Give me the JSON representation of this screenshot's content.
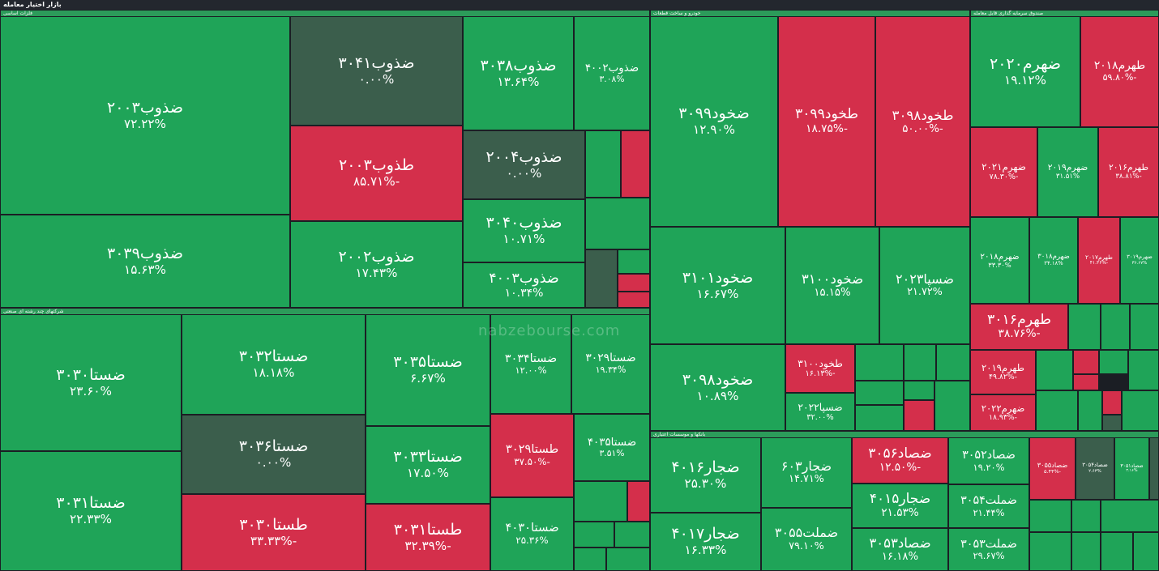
{
  "header": {
    "title": "بازار اختیار معامله"
  },
  "watermark": "nabzebourse.com",
  "sectors": [
    {
      "name": "فلزات اساسی",
      "tiles": [
        {
          "symbol": "ضذوب۲۰۰۳",
          "change": "۷۲.۲۲%",
          "color": "green"
        },
        {
          "symbol": "ضذوب۳۰۳۹",
          "change": "۱۵.۶۳%",
          "color": "green"
        },
        {
          "symbol": "ضذوب۳۰۴۱",
          "change": "۰.۰۰%",
          "color": "neutral"
        },
        {
          "symbol": "طذوب۲۰۰۳",
          "change": "-۸۵.۷۱%",
          "color": "red"
        },
        {
          "symbol": "ضذوب۲۰۰۲",
          "change": "۱۷.۴۳%",
          "color": "green"
        },
        {
          "symbol": "ضذوب۳۰۳۸",
          "change": "۱۳.۶۴%",
          "color": "green"
        },
        {
          "symbol": "ضذوب۴۰۰۲",
          "change": "۳.۰۸%",
          "color": "green"
        },
        {
          "symbol": "ضذوب۲۰۰۴",
          "change": "۰.۰۰%",
          "color": "neutral"
        },
        {
          "symbol": "ضذوب۳۰۴۰",
          "change": "۱۰.۷۱%",
          "color": "green"
        },
        {
          "symbol": "ضذوب۴۰۰۳",
          "change": "۱۰.۳۴%",
          "color": "green"
        }
      ]
    },
    {
      "name": "شرکتهای چند رشته ای صنعتی",
      "tiles": [
        {
          "symbol": "ضستا۳۰۳۰",
          "change": "۲۳.۶۰%",
          "color": "green"
        },
        {
          "symbol": "ضستا۳۰۳۱",
          "change": "۲۲.۳۳%",
          "color": "green"
        },
        {
          "symbol": "ضستا۳۰۳۲",
          "change": "۱۸.۱۸%",
          "color": "green"
        },
        {
          "symbol": "ضستا۳۰۳۶",
          "change": "۰.۰۰%",
          "color": "neutral"
        },
        {
          "symbol": "طستا۳۰۳۰",
          "change": "-۳۳.۳۳%",
          "color": "red"
        },
        {
          "symbol": "ضستا۳۰۳۵",
          "change": "۶.۶۷%",
          "color": "green"
        },
        {
          "symbol": "ضستا۳۰۳۳",
          "change": "۱۷.۵۰%",
          "color": "green"
        },
        {
          "symbol": "طستا۳۰۳۱",
          "change": "-۳۲.۳۹%",
          "color": "red"
        },
        {
          "symbol": "ضستا۳۰۳۴",
          "change": "۱۲.۰۰%",
          "color": "green"
        },
        {
          "symbol": "ضستا۳۰۲۹",
          "change": "۱۹.۳۴%",
          "color": "green"
        },
        {
          "symbol": "طستا۳۰۲۹",
          "change": "-۳۷.۵۰%",
          "color": "red"
        },
        {
          "symbol": "ضستا۴۰۳۵",
          "change": "۳.۵۱%",
          "color": "green"
        },
        {
          "symbol": "ضستا۴۰۳۰",
          "change": "۲۵.۳۶%",
          "color": "green"
        }
      ]
    },
    {
      "name": "خودرو و ساخت قطعات",
      "tiles": [
        {
          "symbol": "ضخود۳۰۹۹",
          "change": "۱۲.۹۰%",
          "color": "green"
        },
        {
          "symbol": "طخود۳۰۹۹",
          "change": "-۱۸.۷۵%",
          "color": "red"
        },
        {
          "symbol": "طخود۳۰۹۸",
          "change": "-۵۰.۰۰%",
          "color": "red"
        },
        {
          "symbol": "ضخود۳۱۰۱",
          "change": "۱۶.۶۷%",
          "color": "green"
        },
        {
          "symbol": "ضخود۳۰۹۸",
          "change": "۱۰.۸۹%",
          "color": "green"
        },
        {
          "symbol": "ضخود۳۱۰۰",
          "change": "۱۵.۱۵%",
          "color": "green"
        },
        {
          "symbol": "ضسپا۲۰۲۳",
          "change": "۲۱.۷۲%",
          "color": "green"
        },
        {
          "symbol": "طخود۳۱۰۰",
          "change": "-۱۶.۱۳%",
          "color": "red"
        },
        {
          "symbol": "ضسپا۲۰۲۲",
          "change": "۳۲.۰۰%",
          "color": "green"
        }
      ]
    },
    {
      "name": "صندوق سرمایه گذاری قابل معامله",
      "tiles": [
        {
          "symbol": "ضهرم۲۰۲۰",
          "change": "۱۹.۱۲%",
          "color": "green"
        },
        {
          "symbol": "طهرم۲۰۱۸",
          "change": "-۵۹.۸۰%",
          "color": "red"
        },
        {
          "symbol": "ضهرم۲۰۲۱",
          "change": "-۷۸.۳۰%",
          "color": "red"
        },
        {
          "symbol": "ضهرم۲۰۱۹",
          "change": "۳۱.۵۱%",
          "color": "green"
        },
        {
          "symbol": "طهرم۲۰۱۶",
          "change": "-۳۸.۸۱%",
          "color": "red"
        },
        {
          "symbol": "ضهرم۲۰۱۸",
          "change": "۳۳.۳۰%",
          "color": "green"
        },
        {
          "symbol": "ضهرم۳۰۱۸",
          "change": "۳۴.۱۸%",
          "color": "green"
        },
        {
          "symbol": "طهرم۲۰۱۷",
          "change": "-۴۱.۳۶%",
          "color": "red"
        },
        {
          "symbol": "ضهرم۳۰۱۹",
          "change": "۳۶.۶۷%",
          "color": "green"
        },
        {
          "symbol": "طهرم۳۰۱۶",
          "change": "-۳۸.۷۶%",
          "color": "red"
        },
        {
          "symbol": "طهرم۲۰۱۹",
          "change": "-۴۹.۸۲%",
          "color": "red"
        },
        {
          "symbol": "ضهرم۲۰۲۲",
          "change": "-۱۸.۹۳%",
          "color": "red"
        }
      ]
    },
    {
      "name": "بانکها و موسسات اعتباری",
      "tiles": [
        {
          "symbol": "ضجار۴۰۱۶",
          "change": "۲۵.۳۰%",
          "color": "green"
        },
        {
          "symbol": "ضجار۴۰۱۷",
          "change": "۱۶.۳۳%",
          "color": "green"
        },
        {
          "symbol": "ضجار۶۰۳",
          "change": "۱۴.۷۱%",
          "color": "green"
        },
        {
          "symbol": "ضملت۳۰۵۵",
          "change": "۷۹.۱۰%",
          "color": "green"
        },
        {
          "symbol": "ضصاد۳۰۵۶",
          "change": "-۱۲.۵۰%",
          "color": "red"
        },
        {
          "symbol": "ضجار۴۰۱۵",
          "change": "۲۱.۵۳%",
          "color": "green"
        },
        {
          "symbol": "ضصاد۳۰۵۳",
          "change": "۱۶.۱۸%",
          "color": "green"
        },
        {
          "symbol": "ضصاد۳۰۵۲",
          "change": "۱۹.۲۰%",
          "color": "green"
        },
        {
          "symbol": "ضملت۳۰۵۴",
          "change": "۲۱.۴۴%",
          "color": "green"
        },
        {
          "symbol": "ضملت۳۰۵۳",
          "change": "۲۹.۶۷%",
          "color": "green"
        },
        {
          "symbol": "ضصاد۳۰۵۵",
          "change": "-۵.۴۴%",
          "color": "red"
        },
        {
          "symbol": "ضصاد۳۰۵۴",
          "change": "۲.۶۳%",
          "color": "neutral"
        },
        {
          "symbol": "ضصاد۳۰۵۱",
          "change": "۳.۱۶%",
          "color": "green"
        }
      ]
    }
  ]
}
